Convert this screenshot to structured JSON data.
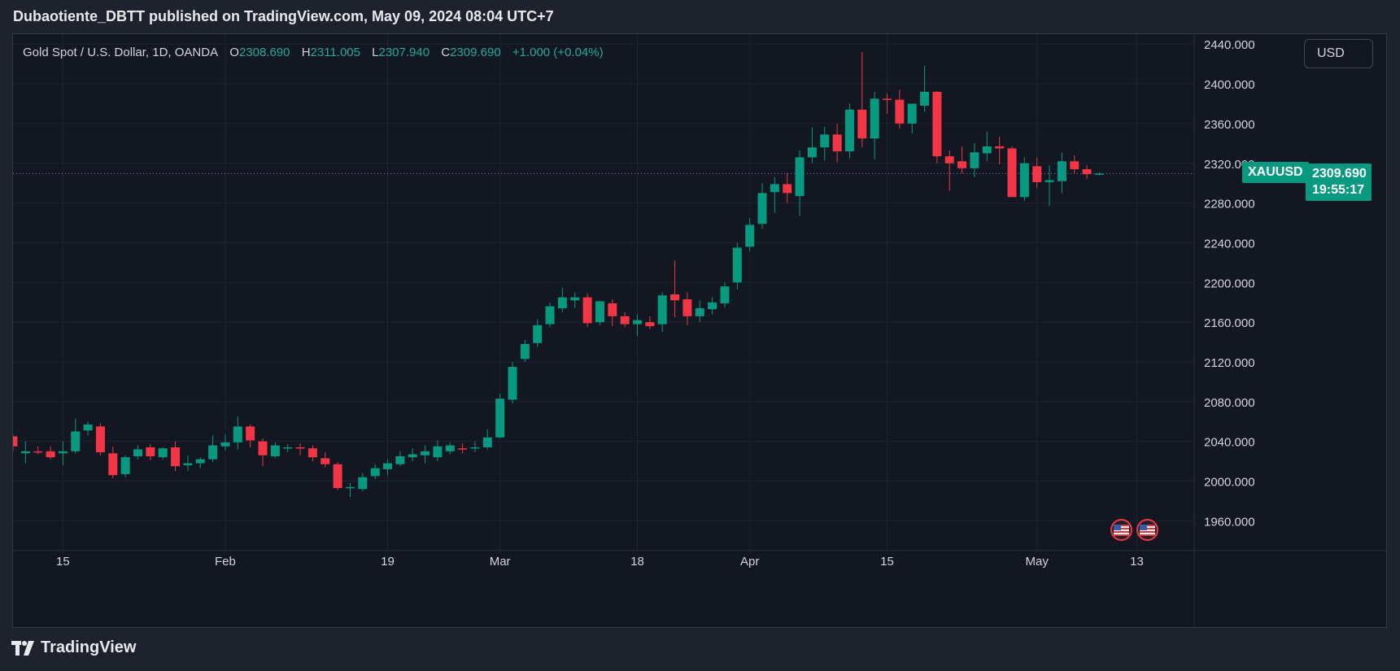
{
  "publisher_line": "Dubaotiente_DBTT published on TradingView.com, May 09, 2024 08:04 UTC+7",
  "legend": {
    "symbol_desc": "Gold Spot / U.S. Dollar, 1D, OANDA",
    "o_label": "O",
    "o_value": "2308.690",
    "h_label": "H",
    "h_value": "2311.005",
    "l_label": "L",
    "l_value": "2307.940",
    "c_label": "C",
    "c_value": "2309.690",
    "change": "+1.000 (+0.04%)"
  },
  "currency_button": "USD",
  "symbol_tag": "XAUUSD",
  "price_tag": {
    "price": "2309.690",
    "countdown": "19:55:17"
  },
  "footer_brand": "TradingView",
  "icons": {
    "flag": "us-flag-icon",
    "logo": "tradingview-logo-icon"
  },
  "colors": {
    "up": "#089981",
    "down": "#f23645",
    "background": "#131722",
    "grid": "#1f2330",
    "axis_text": "#d1d4dc",
    "price_line": "#9c6ade"
  },
  "chart_data": {
    "type": "candlestick",
    "title": "",
    "y_range": [
      1930,
      2450
    ],
    "y_ticks": [
      "1960.000",
      "2000.000",
      "2040.000",
      "2080.000",
      "2120.000",
      "2160.000",
      "2200.000",
      "2240.000",
      "2280.000",
      "2320.000",
      "2360.000",
      "2400.000",
      "2440.000"
    ],
    "x_ticks": [
      {
        "label": "15",
        "index": 4
      },
      {
        "label": "Feb",
        "index": 17
      },
      {
        "label": "19",
        "index": 30
      },
      {
        "label": "Mar",
        "index": 39
      },
      {
        "label": "18",
        "index": 50
      },
      {
        "label": "Apr",
        "index": 59
      },
      {
        "label": "15",
        "index": 70
      },
      {
        "label": "May",
        "index": 82
      },
      {
        "label": "13",
        "index": 90
      }
    ],
    "last_price": 2309.69,
    "grid": true,
    "candles": [
      {
        "o": 2045,
        "h": 2047,
        "l": 2030,
        "c": 2035
      },
      {
        "o": 2028,
        "h": 2040,
        "l": 2018,
        "c": 2030
      },
      {
        "o": 2030,
        "h": 2035,
        "l": 2027,
        "c": 2029
      },
      {
        "o": 2030,
        "h": 2035,
        "l": 2022,
        "c": 2024
      },
      {
        "o": 2028,
        "h": 2040,
        "l": 2016,
        "c": 2030
      },
      {
        "o": 2030,
        "h": 2063,
        "l": 2028,
        "c": 2050
      },
      {
        "o": 2051,
        "h": 2060,
        "l": 2046,
        "c": 2057
      },
      {
        "o": 2055,
        "h": 2058,
        "l": 2026,
        "c": 2029
      },
      {
        "o": 2028,
        "h": 2035,
        "l": 2003,
        "c": 2006
      },
      {
        "o": 2007,
        "h": 2026,
        "l": 2004,
        "c": 2024
      },
      {
        "o": 2025,
        "h": 2036,
        "l": 2022,
        "c": 2032
      },
      {
        "o": 2034,
        "h": 2037,
        "l": 2021,
        "c": 2025
      },
      {
        "o": 2024,
        "h": 2034,
        "l": 2022,
        "c": 2033
      },
      {
        "o": 2034,
        "h": 2040,
        "l": 2010,
        "c": 2015
      },
      {
        "o": 2016,
        "h": 2026,
        "l": 2010,
        "c": 2018
      },
      {
        "o": 2018,
        "h": 2024,
        "l": 2013,
        "c": 2022
      },
      {
        "o": 2022,
        "h": 2046,
        "l": 2019,
        "c": 2036
      },
      {
        "o": 2035,
        "h": 2047,
        "l": 2031,
        "c": 2039
      },
      {
        "o": 2039,
        "h": 2065,
        "l": 2032,
        "c": 2055
      },
      {
        "o": 2055,
        "h": 2057,
        "l": 2034,
        "c": 2041
      },
      {
        "o": 2040,
        "h": 2043,
        "l": 2015,
        "c": 2026
      },
      {
        "o": 2025,
        "h": 2039,
        "l": 2023,
        "c": 2036
      },
      {
        "o": 2034,
        "h": 2037,
        "l": 2029,
        "c": 2034
      },
      {
        "o": 2034,
        "h": 2038,
        "l": 2026,
        "c": 2033
      },
      {
        "o": 2033,
        "h": 2036,
        "l": 2020,
        "c": 2024
      },
      {
        "o": 2023,
        "h": 2029,
        "l": 2014,
        "c": 2017
      },
      {
        "o": 2017,
        "h": 2019,
        "l": 1991,
        "c": 1993
      },
      {
        "o": 1994,
        "h": 1998,
        "l": 1984,
        "c": 1994
      },
      {
        "o": 1992,
        "h": 2008,
        "l": 1990,
        "c": 2004
      },
      {
        "o": 2005,
        "h": 2017,
        "l": 2002,
        "c": 2013
      },
      {
        "o": 2012,
        "h": 2022,
        "l": 2006,
        "c": 2018
      },
      {
        "o": 2017,
        "h": 2030,
        "l": 2015,
        "c": 2025
      },
      {
        "o": 2024,
        "h": 2033,
        "l": 2020,
        "c": 2027
      },
      {
        "o": 2026,
        "h": 2036,
        "l": 2018,
        "c": 2030
      },
      {
        "o": 2024,
        "h": 2041,
        "l": 2020,
        "c": 2035
      },
      {
        "o": 2030,
        "h": 2039,
        "l": 2027,
        "c": 2036
      },
      {
        "o": 2033,
        "h": 2038,
        "l": 2028,
        "c": 2032
      },
      {
        "o": 2033,
        "h": 2040,
        "l": 2029,
        "c": 2034
      },
      {
        "o": 2034,
        "h": 2052,
        "l": 2032,
        "c": 2044
      },
      {
        "o": 2044,
        "h": 2088,
        "l": 2043,
        "c": 2083
      },
      {
        "o": 2082,
        "h": 2120,
        "l": 2078,
        "c": 2115
      },
      {
        "o": 2123,
        "h": 2142,
        "l": 2120,
        "c": 2138
      },
      {
        "o": 2139,
        "h": 2163,
        "l": 2135,
        "c": 2157
      },
      {
        "o": 2158,
        "h": 2180,
        "l": 2155,
        "c": 2176
      },
      {
        "o": 2174,
        "h": 2195,
        "l": 2170,
        "c": 2185
      },
      {
        "o": 2182,
        "h": 2190,
        "l": 2174,
        "c": 2185
      },
      {
        "o": 2185,
        "h": 2189,
        "l": 2155,
        "c": 2159
      },
      {
        "o": 2160,
        "h": 2182,
        "l": 2157,
        "c": 2181
      },
      {
        "o": 2179,
        "h": 2183,
        "l": 2156,
        "c": 2166
      },
      {
        "o": 2166,
        "h": 2170,
        "l": 2155,
        "c": 2158
      },
      {
        "o": 2158,
        "h": 2168,
        "l": 2146,
        "c": 2162
      },
      {
        "o": 2160,
        "h": 2166,
        "l": 2153,
        "c": 2156
      },
      {
        "o": 2158,
        "h": 2190,
        "l": 2150,
        "c": 2187
      },
      {
        "o": 2188,
        "h": 2222,
        "l": 2165,
        "c": 2182
      },
      {
        "o": 2183,
        "h": 2190,
        "l": 2157,
        "c": 2166
      },
      {
        "o": 2166,
        "h": 2182,
        "l": 2160,
        "c": 2174
      },
      {
        "o": 2173,
        "h": 2185,
        "l": 2168,
        "c": 2180
      },
      {
        "o": 2179,
        "h": 2200,
        "l": 2175,
        "c": 2196
      },
      {
        "o": 2200,
        "h": 2240,
        "l": 2193,
        "c": 2235
      },
      {
        "o": 2236,
        "h": 2265,
        "l": 2231,
        "c": 2258
      },
      {
        "o": 2259,
        "h": 2300,
        "l": 2254,
        "c": 2290
      },
      {
        "o": 2291,
        "h": 2306,
        "l": 2270,
        "c": 2299
      },
      {
        "o": 2299,
        "h": 2310,
        "l": 2280,
        "c": 2290
      },
      {
        "o": 2287,
        "h": 2333,
        "l": 2267,
        "c": 2326
      },
      {
        "o": 2326,
        "h": 2356,
        "l": 2320,
        "c": 2336
      },
      {
        "o": 2336,
        "h": 2357,
        "l": 2323,
        "c": 2349
      },
      {
        "o": 2349,
        "h": 2360,
        "l": 2321,
        "c": 2332
      },
      {
        "o": 2332,
        "h": 2380,
        "l": 2325,
        "c": 2374
      },
      {
        "o": 2374,
        "h": 2432,
        "l": 2336,
        "c": 2345
      },
      {
        "o": 2345,
        "h": 2392,
        "l": 2324,
        "c": 2385
      },
      {
        "o": 2385,
        "h": 2390,
        "l": 2370,
        "c": 2384
      },
      {
        "o": 2384,
        "h": 2394,
        "l": 2355,
        "c": 2360
      },
      {
        "o": 2360,
        "h": 2380,
        "l": 2350,
        "c": 2380
      },
      {
        "o": 2378,
        "h": 2418,
        "l": 2372,
        "c": 2392
      },
      {
        "o": 2392,
        "h": 2393,
        "l": 2320,
        "c": 2327
      },
      {
        "o": 2327,
        "h": 2333,
        "l": 2292,
        "c": 2320
      },
      {
        "o": 2322,
        "h": 2337,
        "l": 2310,
        "c": 2315
      },
      {
        "o": 2315,
        "h": 2340,
        "l": 2306,
        "c": 2331
      },
      {
        "o": 2330,
        "h": 2352,
        "l": 2322,
        "c": 2337
      },
      {
        "o": 2337,
        "h": 2347,
        "l": 2319,
        "c": 2335
      },
      {
        "o": 2335,
        "h": 2337,
        "l": 2286,
        "c": 2286
      },
      {
        "o": 2286,
        "h": 2326,
        "l": 2282,
        "c": 2320
      },
      {
        "o": 2317,
        "h": 2326,
        "l": 2295,
        "c": 2301
      },
      {
        "o": 2301,
        "h": 2318,
        "l": 2277,
        "c": 2303
      },
      {
        "o": 2302,
        "h": 2331,
        "l": 2290,
        "c": 2322
      },
      {
        "o": 2322,
        "h": 2328,
        "l": 2310,
        "c": 2314
      },
      {
        "o": 2314,
        "h": 2318,
        "l": 2304,
        "c": 2309
      },
      {
        "o": 2308.69,
        "h": 2311.005,
        "l": 2307.94,
        "c": 2309.69
      }
    ]
  }
}
